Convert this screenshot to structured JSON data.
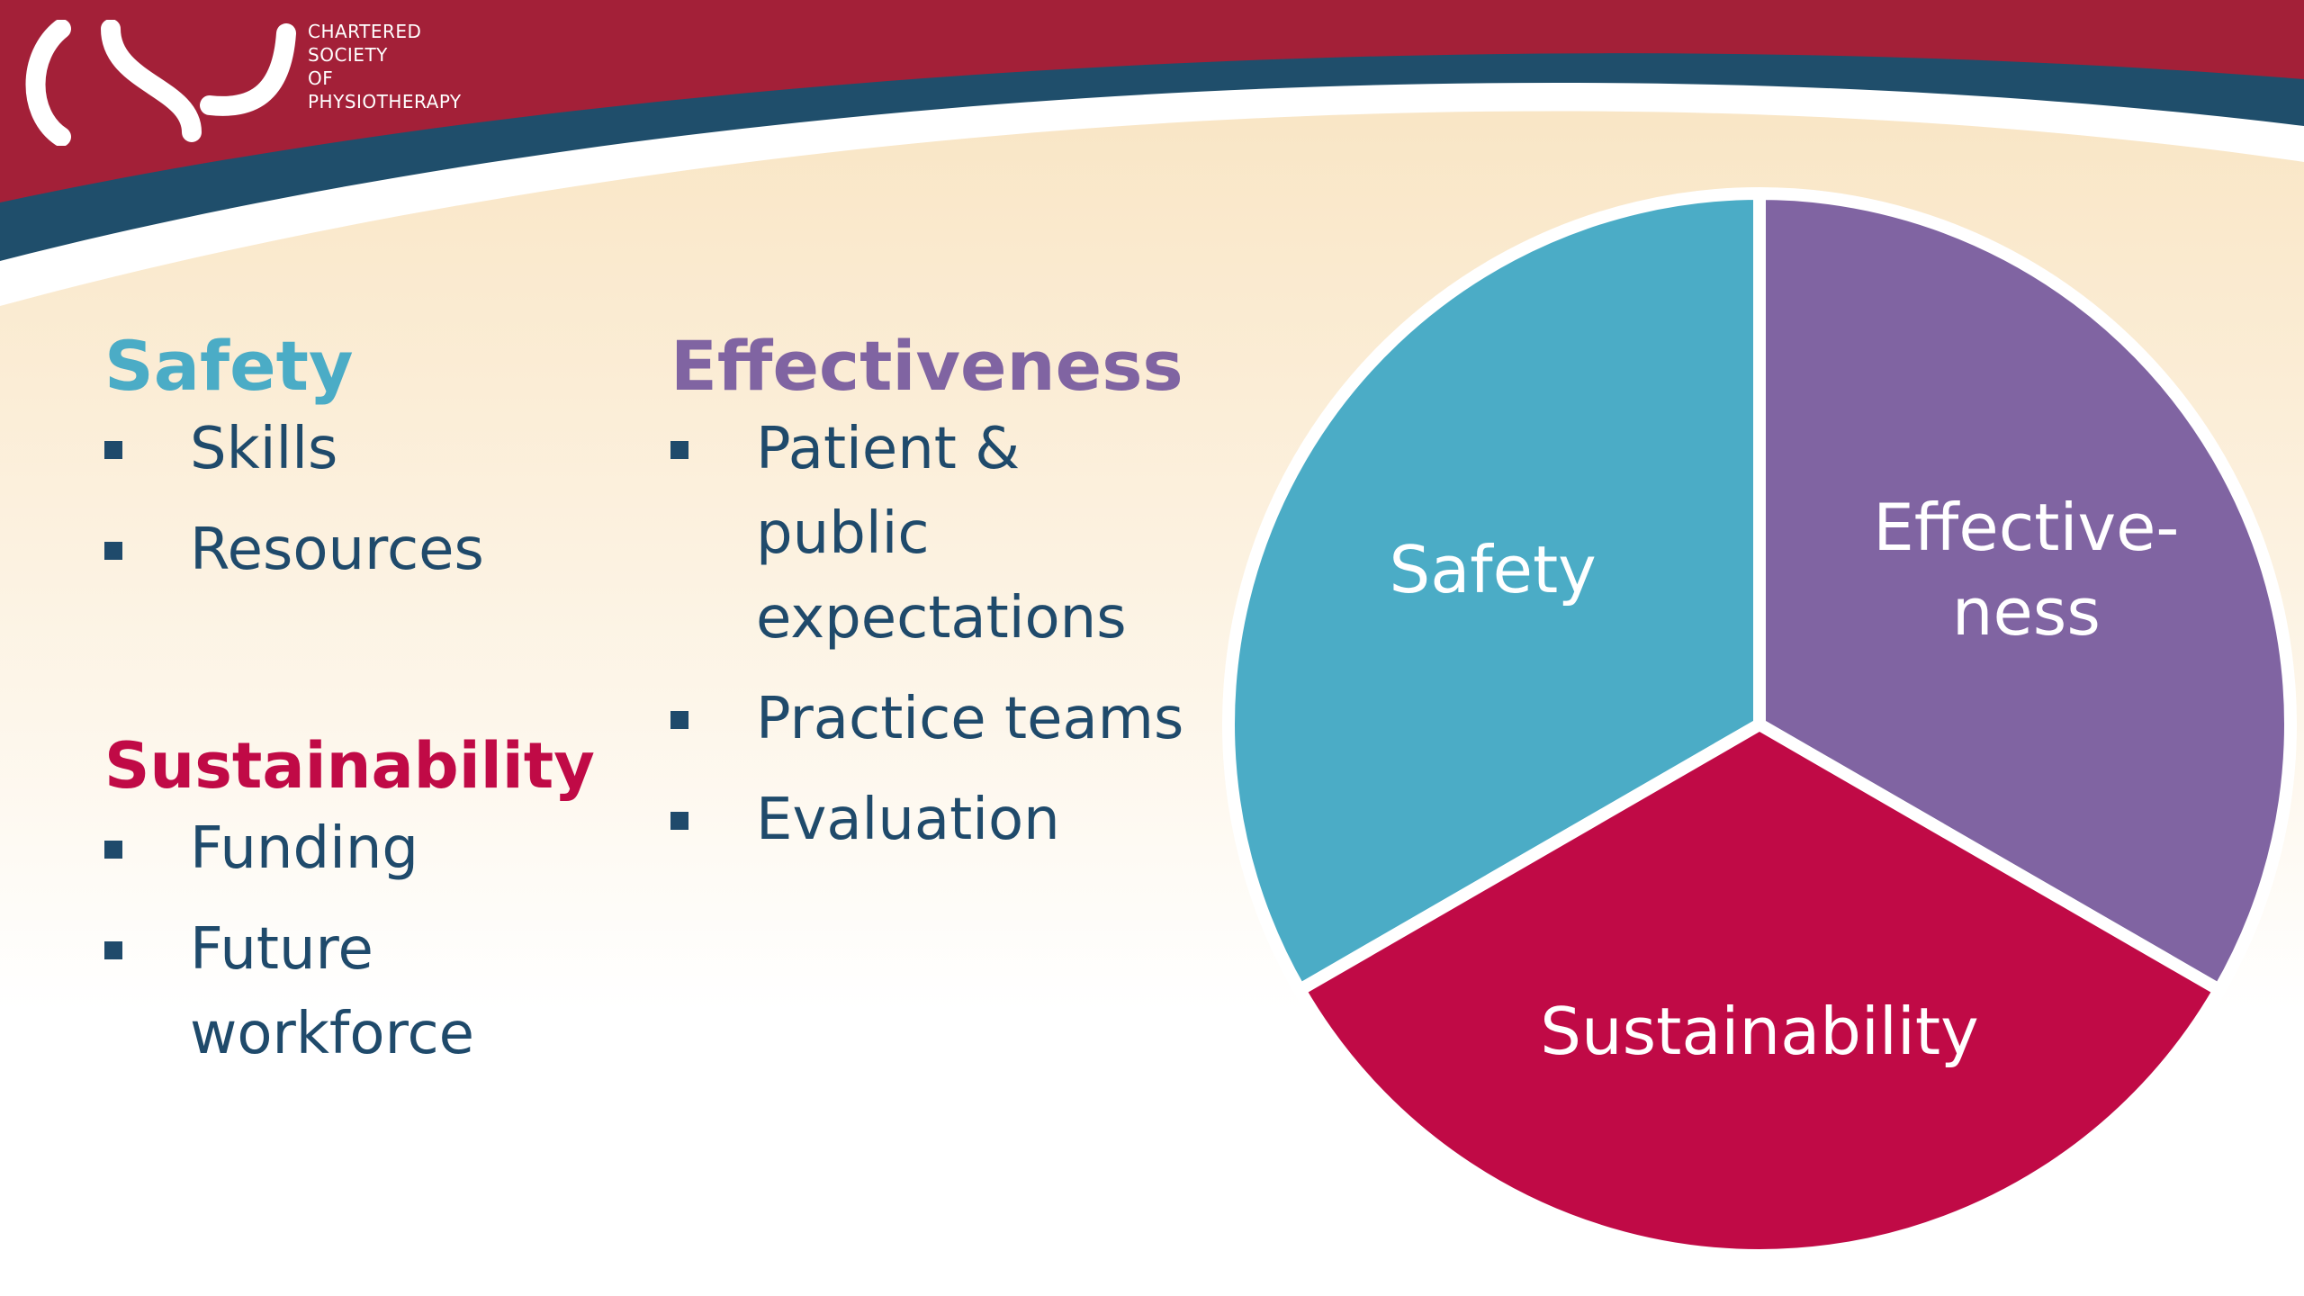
{
  "header": {
    "logo": {
      "icon": "csp-logo-mark",
      "lines": [
        "CHARTERED",
        "SOCIETY",
        "OF",
        "PHYSIOTHERAPY"
      ]
    },
    "colors": {
      "band": "#a32038",
      "stripe": "#1f4e6b"
    }
  },
  "columns": {
    "safety": {
      "heading": "Safety",
      "color": "#4bacc6",
      "items": [
        "Skills",
        "Resources"
      ]
    },
    "sustainability": {
      "heading": "Sustainability",
      "color": "#c00a46",
      "items": [
        "Funding",
        "Future workforce"
      ]
    },
    "effectiveness": {
      "heading": "Effectiveness",
      "color": "#8064a2",
      "items": [
        "Patient & public expectations",
        "Practice teams",
        "Evaluation"
      ]
    }
  },
  "chart_data": {
    "type": "pie",
    "slices": [
      {
        "label": "Safety",
        "value": 1,
        "color": "#4bacc6"
      },
      {
        "label": "Effective-ness",
        "label_lines": [
          "Effective-",
          "ness"
        ],
        "value": 1,
        "color": "#8064a2"
      },
      {
        "label": "Sustainability",
        "value": 1,
        "color": "#c00a46"
      }
    ]
  }
}
